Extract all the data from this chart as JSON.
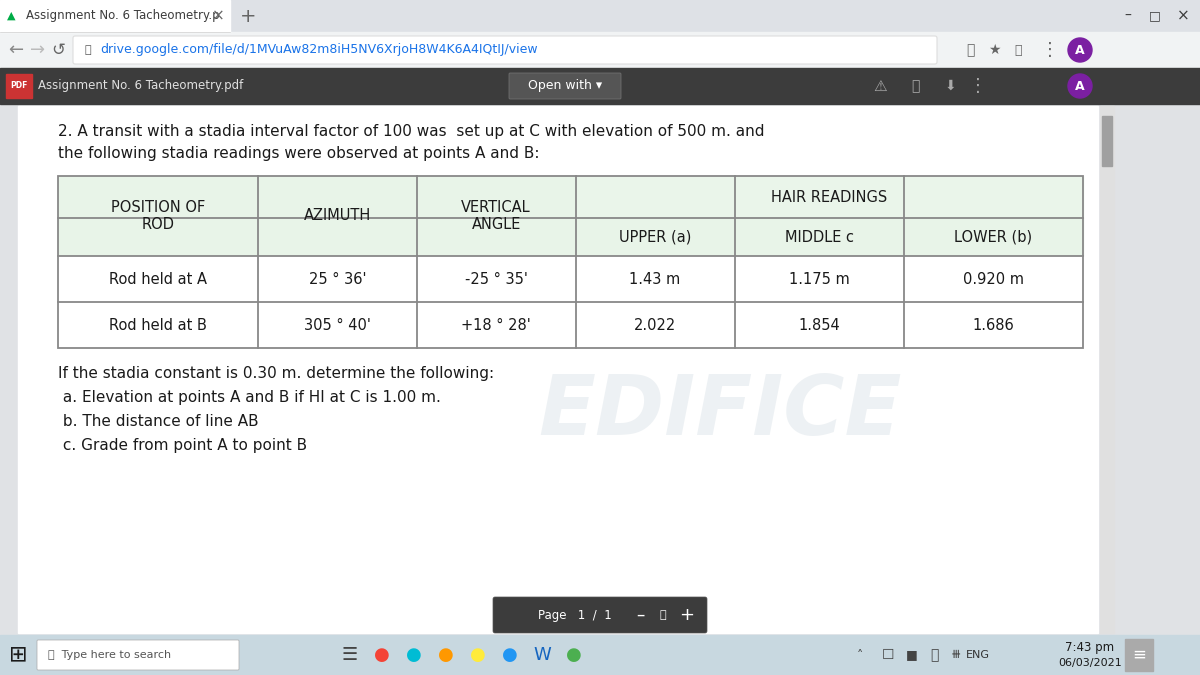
{
  "browser_tab_text": "Assignment No. 6 Tacheometry.p",
  "url": "drive.google.com/file/d/1MVuAw82m8iH5NV6XrjoH8W4K6A4IQtIJ/view",
  "pdf_label": "Assignment No. 6 Tacheometry.pdf",
  "open_with_btn": "Open with ▾",
  "problem_text_line1": "2. A transit with a stadia interval factor of 100 was  set up at C with elevation of 500 m. and",
  "problem_text_line2": "the following stadia readings were observed at points A and B:",
  "table_data": [
    [
      "Rod held at A",
      "25 ° 36'",
      "-25 ° 35'",
      "1.43 m",
      "1.175 m",
      "0.920 m"
    ],
    [
      "Rod held at B",
      "305 ° 40'",
      "+18 ° 28'",
      "2.022",
      "1.854",
      "1.686"
    ]
  ],
  "footer_text_lines": [
    "If the stadia constant is 0.30 m. determine the following:",
    " a. Elevation at points A and B if HI at C is 1.00 m.",
    " b. The distance of line AB",
    " c. Grade from point A to point B"
  ],
  "taskbar_time": "7:43 pm",
  "taskbar_date": "06/03/2021",
  "taskbar_lang": "ENG",
  "chrome_tab_bg": "#dee1e6",
  "chrome_active_tab_bg": "#f1f3f4",
  "chrome_nav_bg": "#f1f3f4",
  "pdf_toolbar_bg": "#3c3c3c",
  "content_bg": "#e8eaed",
  "page_bg": "#ffffff",
  "table_header_bg": "#e8f4e8",
  "table_subheader_bg": "#eaf5ea",
  "table_border": "#888888",
  "text_black": "#202124",
  "text_dark": "#3c4043",
  "taskbar_bg": "#c8d8e0",
  "taskbar_text": "#000000",
  "page_ctrl_bg": "#3c3c3c",
  "watermark_color": "#cdd8e0",
  "url_color": "#1a73e8",
  "scrollbar_bg": "#c8c8c8",
  "scroll_thumb": "#888888"
}
